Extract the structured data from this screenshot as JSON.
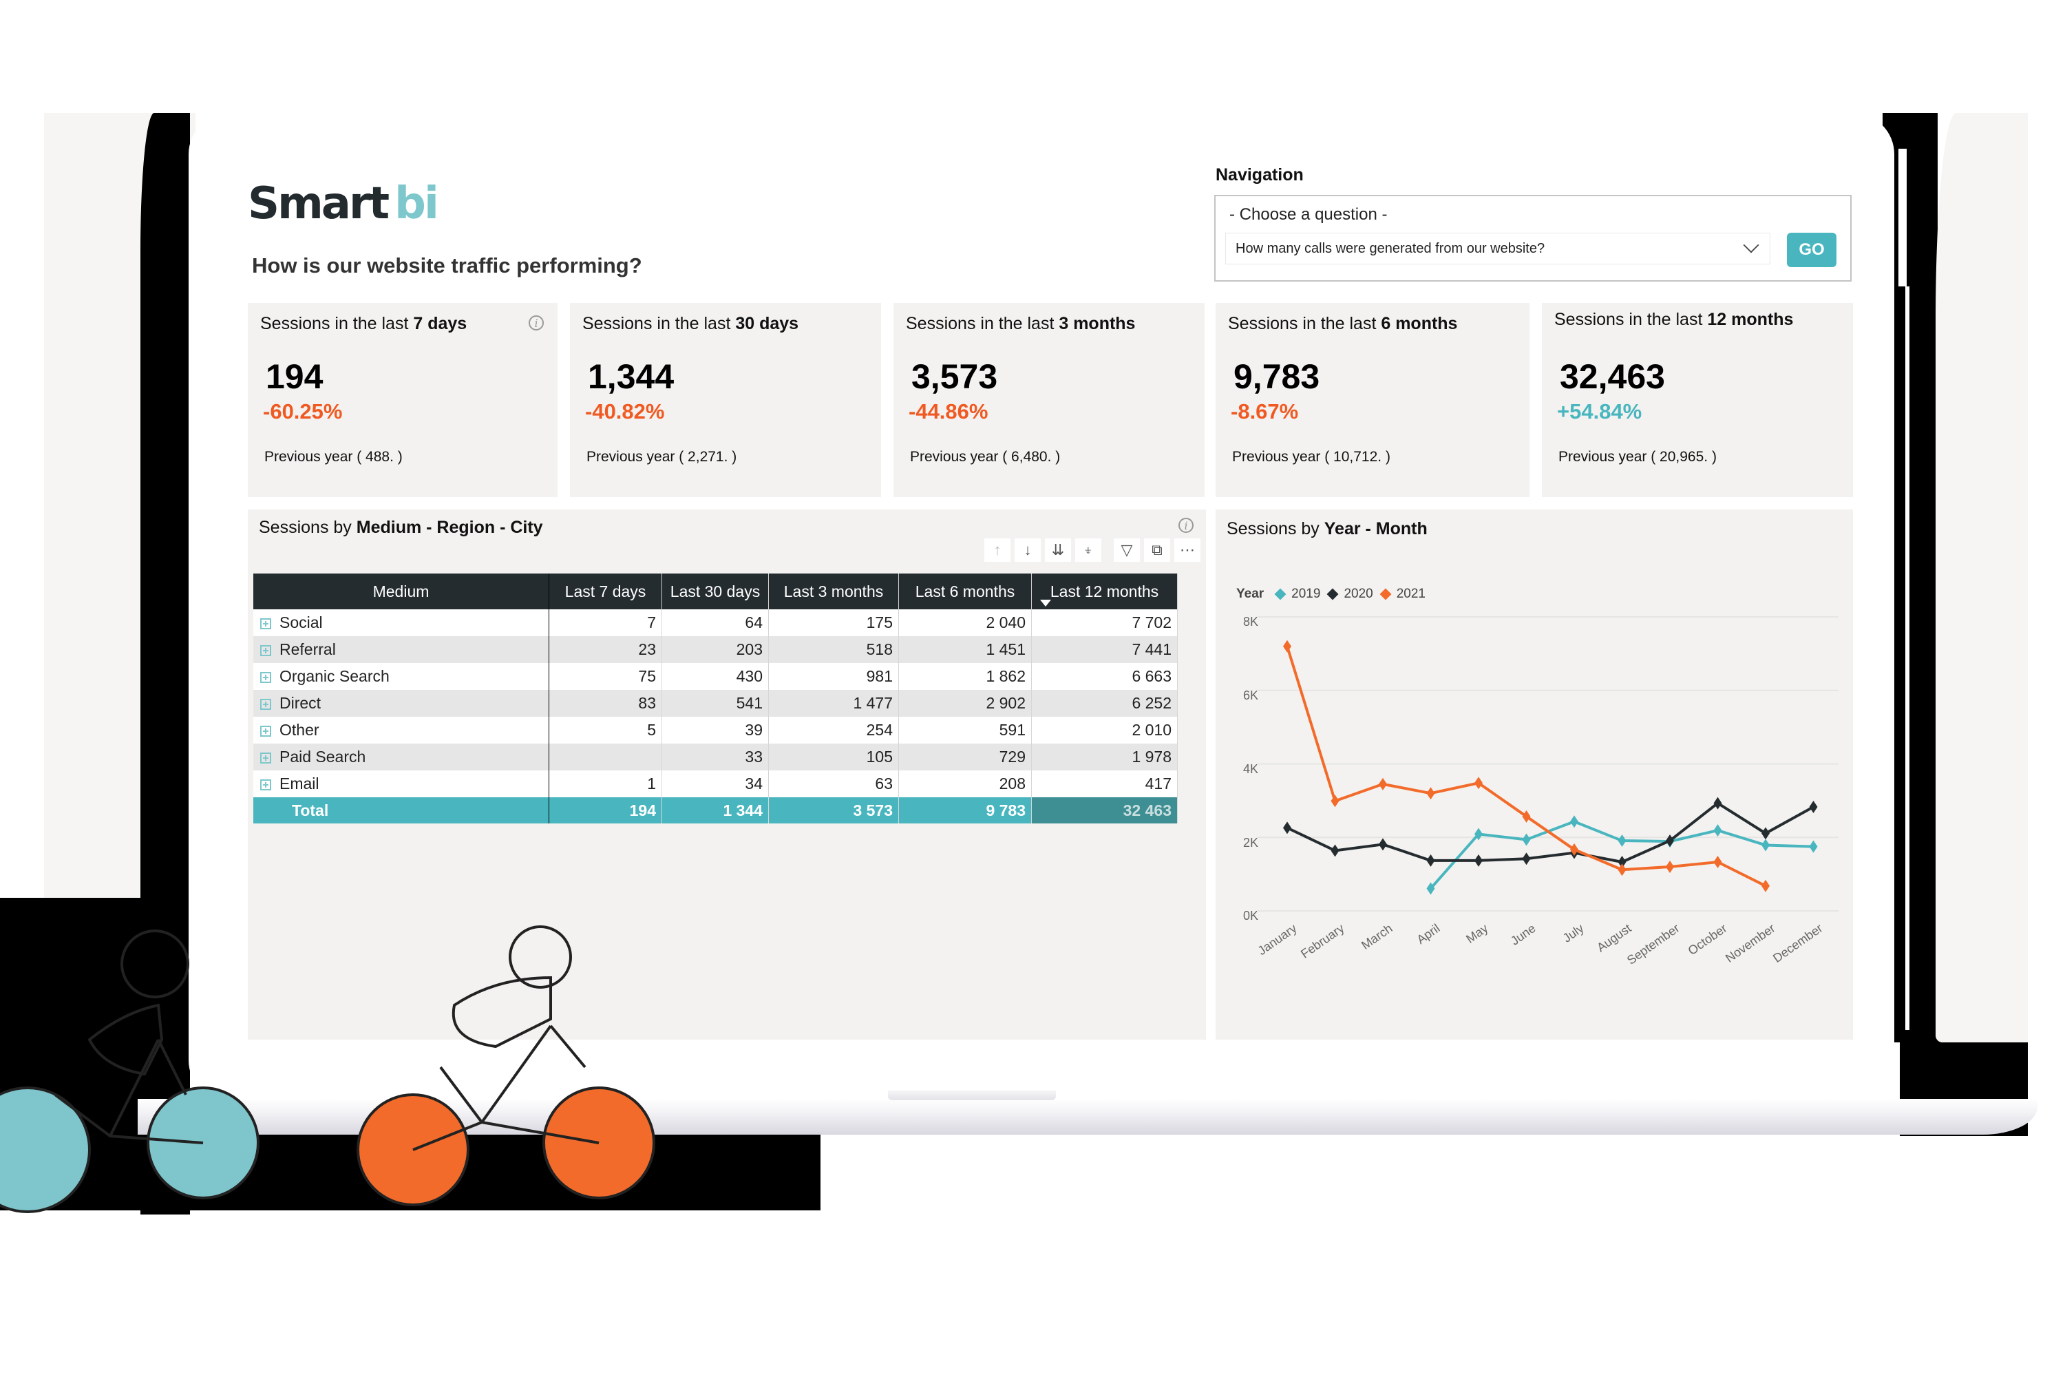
{
  "brand": {
    "name_main": "Smart",
    "name_accent": "bi"
  },
  "page_title": "How is our website traffic performing?",
  "navigation": {
    "label": "Navigation",
    "prompt": "- Choose a question -",
    "selected_question": "How many calls were generated from our website?",
    "go_label": "GO"
  },
  "kpis": [
    {
      "title_prefix": "Sessions in the last ",
      "title_bold": "7 days",
      "value": "194",
      "change": "-60.25%",
      "change_color": "#f05a22",
      "previous": "Previous year ( 488. )"
    },
    {
      "title_prefix": "Sessions in the last ",
      "title_bold": "30 days",
      "value": "1,344",
      "change": "-40.82%",
      "change_color": "#f05a22",
      "previous": "Previous year ( 2,271. )"
    },
    {
      "title_prefix": "Sessions in the last ",
      "title_bold": "3 months",
      "value": "3,573",
      "change": "-44.86%",
      "change_color": "#f05a22",
      "previous": "Previous year ( 6,480. )"
    },
    {
      "title_prefix": "Sessions in the last ",
      "title_bold": "6 months",
      "value": "9,783",
      "change": "-8.67%",
      "change_color": "#f05a22",
      "previous": "Previous year ( 10,712. )"
    },
    {
      "title_prefix": "Sessions in the last ",
      "title_bold": "12 months",
      "value": "32,463",
      "change": "+54.84%",
      "change_color": "#49b6bf",
      "previous": "Previous year ( 20,965. )"
    }
  ],
  "table_panel": {
    "title_prefix": "Sessions by ",
    "title_bold": "Medium - Region - City",
    "toolbar": [
      "arrow-up-icon",
      "arrow-down-icon",
      "double-arrow-down-icon",
      "expand-hierarchy-icon",
      "filter-icon",
      "focus-mode-icon",
      "more-options-icon"
    ],
    "columns": [
      "Medium",
      "Last 7 days",
      "Last 30 days",
      "Last 3 months",
      "Last 6 months",
      "Last 12 months"
    ],
    "sorted_column": "Last 12 months",
    "rows": [
      {
        "medium": "Social",
        "d7": "7",
        "d30": "64",
        "m3": "175",
        "m6": "2 040",
        "m12": "7 702"
      },
      {
        "medium": "Referral",
        "d7": "23",
        "d30": "203",
        "m3": "518",
        "m6": "1 451",
        "m12": "7 441"
      },
      {
        "medium": "Organic Search",
        "d7": "75",
        "d30": "430",
        "m3": "981",
        "m6": "1 862",
        "m12": "6 663"
      },
      {
        "medium": "Direct",
        "d7": "83",
        "d30": "541",
        "m3": "1 477",
        "m6": "2 902",
        "m12": "6 252"
      },
      {
        "medium": "Other",
        "d7": "5",
        "d30": "39",
        "m3": "254",
        "m6": "591",
        "m12": "2 010"
      },
      {
        "medium": "Paid Search",
        "d7": "",
        "d30": "33",
        "m3": "105",
        "m6": "729",
        "m12": "1 978"
      },
      {
        "medium": "Email",
        "d7": "1",
        "d30": "34",
        "m3": "63",
        "m6": "208",
        "m12": "417"
      }
    ],
    "total": {
      "medium": "Total",
      "d7": "194",
      "d30": "1 344",
      "m3": "3 573",
      "m6": "9 783",
      "m12": "32 463"
    }
  },
  "chart_panel": {
    "title_prefix": "Sessions by ",
    "title_bold": "Year - Month"
  },
  "chart_data": {
    "type": "line",
    "title": "Sessions by Year - Month",
    "xlabel": "",
    "ylabel": "",
    "legend_title": "Year",
    "legend_position": "top-left",
    "grid": true,
    "ylim": [
      0,
      8000
    ],
    "yticks": [
      "0K",
      "2K",
      "4K",
      "6K",
      "8K"
    ],
    "categories": [
      "January",
      "February",
      "March",
      "April",
      "May",
      "June",
      "July",
      "August",
      "September",
      "October",
      "November",
      "December"
    ],
    "series": [
      {
        "name": "2019",
        "color": "#49b6bf",
        "values": [
          null,
          null,
          null,
          610,
          2090,
          1940,
          2430,
          1910,
          1890,
          2190,
          1790,
          1750
        ]
      },
      {
        "name": "2020",
        "color": "#252c30",
        "values": [
          2260,
          1640,
          1810,
          1370,
          1370,
          1420,
          1580,
          1330,
          1910,
          2930,
          2110,
          2830
        ]
      },
      {
        "name": "2021",
        "color": "#f26b2a",
        "values": [
          7200,
          2990,
          3450,
          3200,
          3480,
          2570,
          1670,
          1120,
          1200,
          1330,
          680,
          null
        ]
      }
    ]
  }
}
